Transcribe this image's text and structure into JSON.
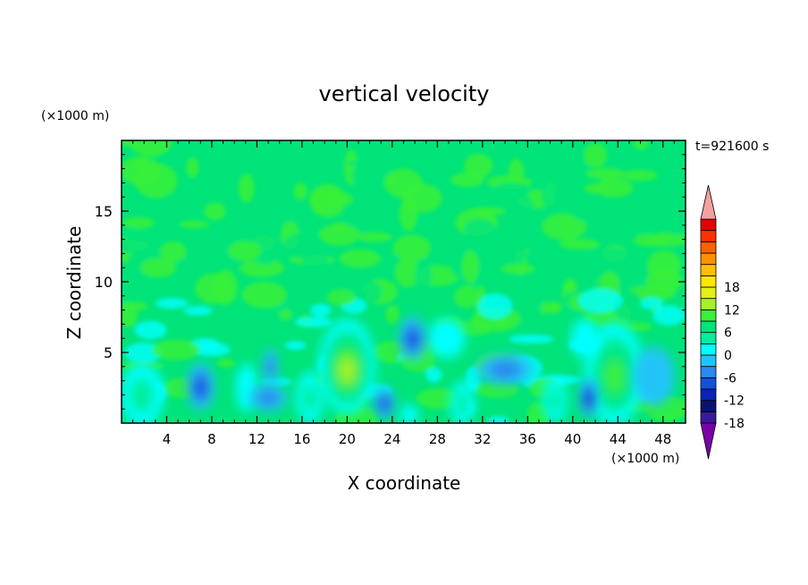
{
  "chart_data": {
    "type": "heatmap",
    "title": "vertical velocity",
    "xlabel": "X coordinate",
    "ylabel": "Z coordinate",
    "x_unit": "(×1000 m)",
    "y_unit": "(×1000 m)",
    "time_label": "t=921600 s",
    "xlim": [
      0,
      50
    ],
    "ylim": [
      0,
      20
    ],
    "x_ticks": [
      4,
      8,
      12,
      16,
      20,
      24,
      28,
      32,
      36,
      40,
      44,
      48
    ],
    "y_ticks": [
      5,
      10,
      15
    ],
    "colorbar": {
      "min": -21,
      "max": 21,
      "step": 3,
      "tick_labels": [
        18,
        12,
        6,
        0,
        -6,
        -12,
        -18
      ],
      "colors": [
        "#7a00a8",
        "#3a1a9a",
        "#0a1470",
        "#0a24b4",
        "#1450dc",
        "#2a88ee",
        "#22c4f8",
        "#00ffff",
        "#00f0a0",
        "#00e47a",
        "#3af03a",
        "#a8f028",
        "#e2f014",
        "#ffe600",
        "#ffbe00",
        "#ff9000",
        "#ff6000",
        "#ff3000",
        "#e60000",
        "#f5a0a0"
      ]
    },
    "features": [
      {
        "x": 20,
        "z": 4,
        "sx": 1.8,
        "sz": 2.4,
        "value": 15
      },
      {
        "x": 43.7,
        "z": 3.5,
        "sx": 1.9,
        "sz": 2.6,
        "value": 11
      },
      {
        "x": 1.8,
        "z": 2,
        "sx": 1.4,
        "sz": 1.6,
        "value": 6
      },
      {
        "x": 16.7,
        "z": 1.8,
        "sx": 0.9,
        "sz": 1.3,
        "value": 5
      },
      {
        "x": 30.2,
        "z": 1.4,
        "sx": 0.8,
        "sz": 1.1,
        "value": 5
      },
      {
        "x": 38.4,
        "z": 1.6,
        "sx": 0.8,
        "sz": 1.1,
        "value": 5
      },
      {
        "x": 28.8,
        "z": 6,
        "sx": 1.2,
        "sz": 1,
        "value": 3
      },
      {
        "x": 41.1,
        "z": 6,
        "sx": 0.9,
        "sz": 1,
        "value": 3
      },
      {
        "x": 11.1,
        "z": 2.5,
        "sx": 0.7,
        "sz": 1.2,
        "value": 3
      },
      {
        "x": 25.5,
        "z": 0.6,
        "sx": 0.6,
        "sz": 0.5,
        "value": 3
      },
      {
        "x": 7,
        "z": 2.6,
        "sx": 0.9,
        "sz": 1.2,
        "value": -9
      },
      {
        "x": 25.8,
        "z": 6,
        "sx": 0.9,
        "sz": 1.1,
        "value": -9
      },
      {
        "x": 41.4,
        "z": 1.8,
        "sx": 0.6,
        "sz": 1,
        "value": -10
      },
      {
        "x": 23.3,
        "z": 1.4,
        "sx": 0.7,
        "sz": 0.8,
        "value": -7
      },
      {
        "x": 13.2,
        "z": 4,
        "sx": 0.5,
        "sz": 0.9,
        "value": -6
      },
      {
        "x": 34,
        "z": 3.8,
        "sx": 1.8,
        "sz": 0.8,
        "value": -4
      },
      {
        "x": 13,
        "z": 1.8,
        "sx": 1.2,
        "sz": 0.7,
        "value": -4
      },
      {
        "x": 47.2,
        "z": 3.3,
        "sx": 1.3,
        "sz": 1.5,
        "value": -3
      }
    ]
  }
}
